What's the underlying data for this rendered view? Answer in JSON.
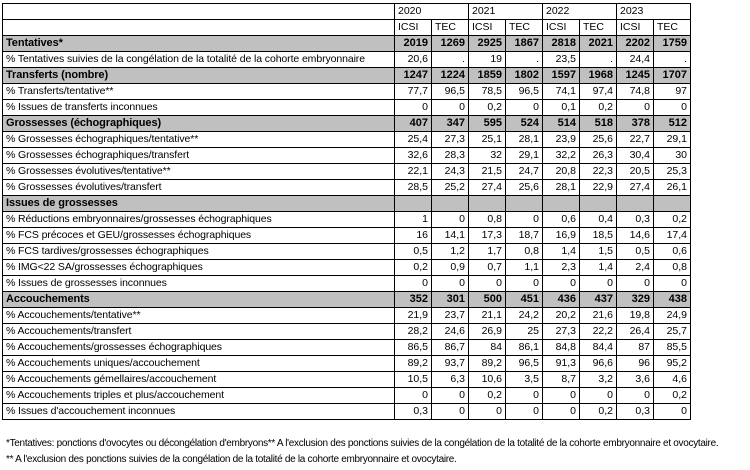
{
  "colors": {
    "section_bg": "#c0c0c0",
    "border": "#000000",
    "background": "#ffffff"
  },
  "table": {
    "corner": "",
    "years": [
      "2020",
      "2021",
      "2022",
      "2023"
    ],
    "sub_headers": [
      "ICSI",
      "TEC"
    ],
    "rows": [
      {
        "label": "Tentatives*",
        "type": "section",
        "values": [
          "2019",
          "1269",
          "2925",
          "1867",
          "2818",
          "2021",
          "2202",
          "1759"
        ]
      },
      {
        "label": "% Tentatives suivies de la congélation de la totalité de la cohorte embryonnaire",
        "type": "data",
        "values": [
          "20,6",
          ".",
          "19",
          ".",
          "23,5",
          ".",
          "24,4",
          "."
        ]
      },
      {
        "label": "Transferts (nombre)",
        "type": "section",
        "values": [
          "1247",
          "1224",
          "1859",
          "1802",
          "1597",
          "1968",
          "1245",
          "1707"
        ]
      },
      {
        "label": "% Transferts/tentative**",
        "type": "data",
        "values": [
          "77,7",
          "96,5",
          "78,5",
          "96,5",
          "74,1",
          "97,4",
          "74,8",
          "97"
        ]
      },
      {
        "label": "% Issues de transferts inconnues",
        "type": "data",
        "values": [
          "0",
          "0",
          "0,2",
          "0",
          "0,1",
          "0,2",
          "0",
          "0"
        ]
      },
      {
        "label": "Grossesses (échographiques)",
        "type": "section",
        "values": [
          "407",
          "347",
          "595",
          "524",
          "514",
          "518",
          "378",
          "512"
        ]
      },
      {
        "label": "% Grossesses échographiques/tentative**",
        "type": "data",
        "values": [
          "25,4",
          "27,3",
          "25,1",
          "28,1",
          "23,9",
          "25,6",
          "22,7",
          "29,1"
        ]
      },
      {
        "label": "% Grossesses échographiques/transfert",
        "type": "data",
        "values": [
          "32,6",
          "28,3",
          "32",
          "29,1",
          "32,2",
          "26,3",
          "30,4",
          "30"
        ]
      },
      {
        "label": "% Grossesses évolutives/tentative**",
        "type": "data",
        "values": [
          "22,1",
          "24,3",
          "21,5",
          "24,7",
          "20,8",
          "22,3",
          "20,5",
          "25,3"
        ]
      },
      {
        "label": "% Grossesses évolutives/transfert",
        "type": "data",
        "values": [
          "28,5",
          "25,2",
          "27,4",
          "25,6",
          "28,1",
          "22,9",
          "27,4",
          "26,1"
        ]
      },
      {
        "label": "Issues de grossesses",
        "type": "section",
        "values": [
          "",
          "",
          "",
          "",
          "",
          "",
          "",
          ""
        ]
      },
      {
        "label": "% Réductions embryonnaires/grossesses échographiques",
        "type": "data",
        "values": [
          "1",
          "0",
          "0,8",
          "0",
          "0,6",
          "0,4",
          "0,3",
          "0,2"
        ]
      },
      {
        "label": "% FCS précoces et GEU/grossesses échographiques",
        "type": "data",
        "values": [
          "16",
          "14,1",
          "17,3",
          "18,7",
          "16,9",
          "18,5",
          "14,6",
          "17,4"
        ]
      },
      {
        "label": "% FCS tardives/grossesses échographiques",
        "type": "data",
        "values": [
          "0,5",
          "1,2",
          "1,7",
          "0,8",
          "1,4",
          "1,5",
          "0,5",
          "0,6"
        ]
      },
      {
        "label": "% IMG<22 SA/grossesses échographiques",
        "type": "data",
        "values": [
          "0,2",
          "0,9",
          "0,7",
          "1,1",
          "2,3",
          "1,4",
          "2,4",
          "0,8"
        ]
      },
      {
        "label": "% Issues de grossesses inconnues",
        "type": "data",
        "values": [
          "0",
          "0",
          "0",
          "0",
          "0",
          "0",
          "0",
          "0"
        ]
      },
      {
        "label": "Accouchements",
        "type": "section",
        "values": [
          "352",
          "301",
          "500",
          "451",
          "436",
          "437",
          "329",
          "438"
        ]
      },
      {
        "label": "% Accouchements/tentative**",
        "type": "data",
        "values": [
          "21,9",
          "23,7",
          "21,1",
          "24,2",
          "20,2",
          "21,6",
          "19,8",
          "24,9"
        ]
      },
      {
        "label": "% Accouchements/transfert",
        "type": "data",
        "values": [
          "28,2",
          "24,6",
          "26,9",
          "25",
          "27,3",
          "22,2",
          "26,4",
          "25,7"
        ]
      },
      {
        "label": "% Accouchements/grossesses échographiques",
        "type": "data",
        "values": [
          "86,5",
          "86,7",
          "84",
          "86,1",
          "84,8",
          "84,4",
          "87",
          "85,5"
        ]
      },
      {
        "label": "% Accouchements uniques/accouchement",
        "type": "data",
        "values": [
          "89,2",
          "93,7",
          "89,2",
          "96,5",
          "91,3",
          "96,6",
          "96",
          "95,2"
        ]
      },
      {
        "label": "% Accouchements gémellaires/accouchement",
        "type": "data",
        "values": [
          "10,5",
          "6,3",
          "10,6",
          "3,5",
          "8,7",
          "3,2",
          "3,6",
          "4,6"
        ]
      },
      {
        "label": "% Accouchements triples et plus/accouchement",
        "type": "data",
        "values": [
          "0",
          "0",
          "0,2",
          "0",
          "0",
          "0",
          "0",
          "0,2"
        ]
      },
      {
        "label": "% Issues d'accouchement inconnues",
        "type": "data",
        "values": [
          "0,3",
          "0",
          "0",
          "0",
          "0",
          "0,2",
          "0,3",
          "0"
        ]
      }
    ]
  },
  "footnotes": [
    "*Tentatives: ponctions d'ovocytes ou décongélation d'embryons** A l'exclusion des ponctions suivies de la congélation de la totalité de la cohorte embryonnaire et ovocytaire.",
    "** A l'exclusion des ponctions suivies de la congélation de la totalité de la cohorte embryonnaire et ovocytaire."
  ]
}
